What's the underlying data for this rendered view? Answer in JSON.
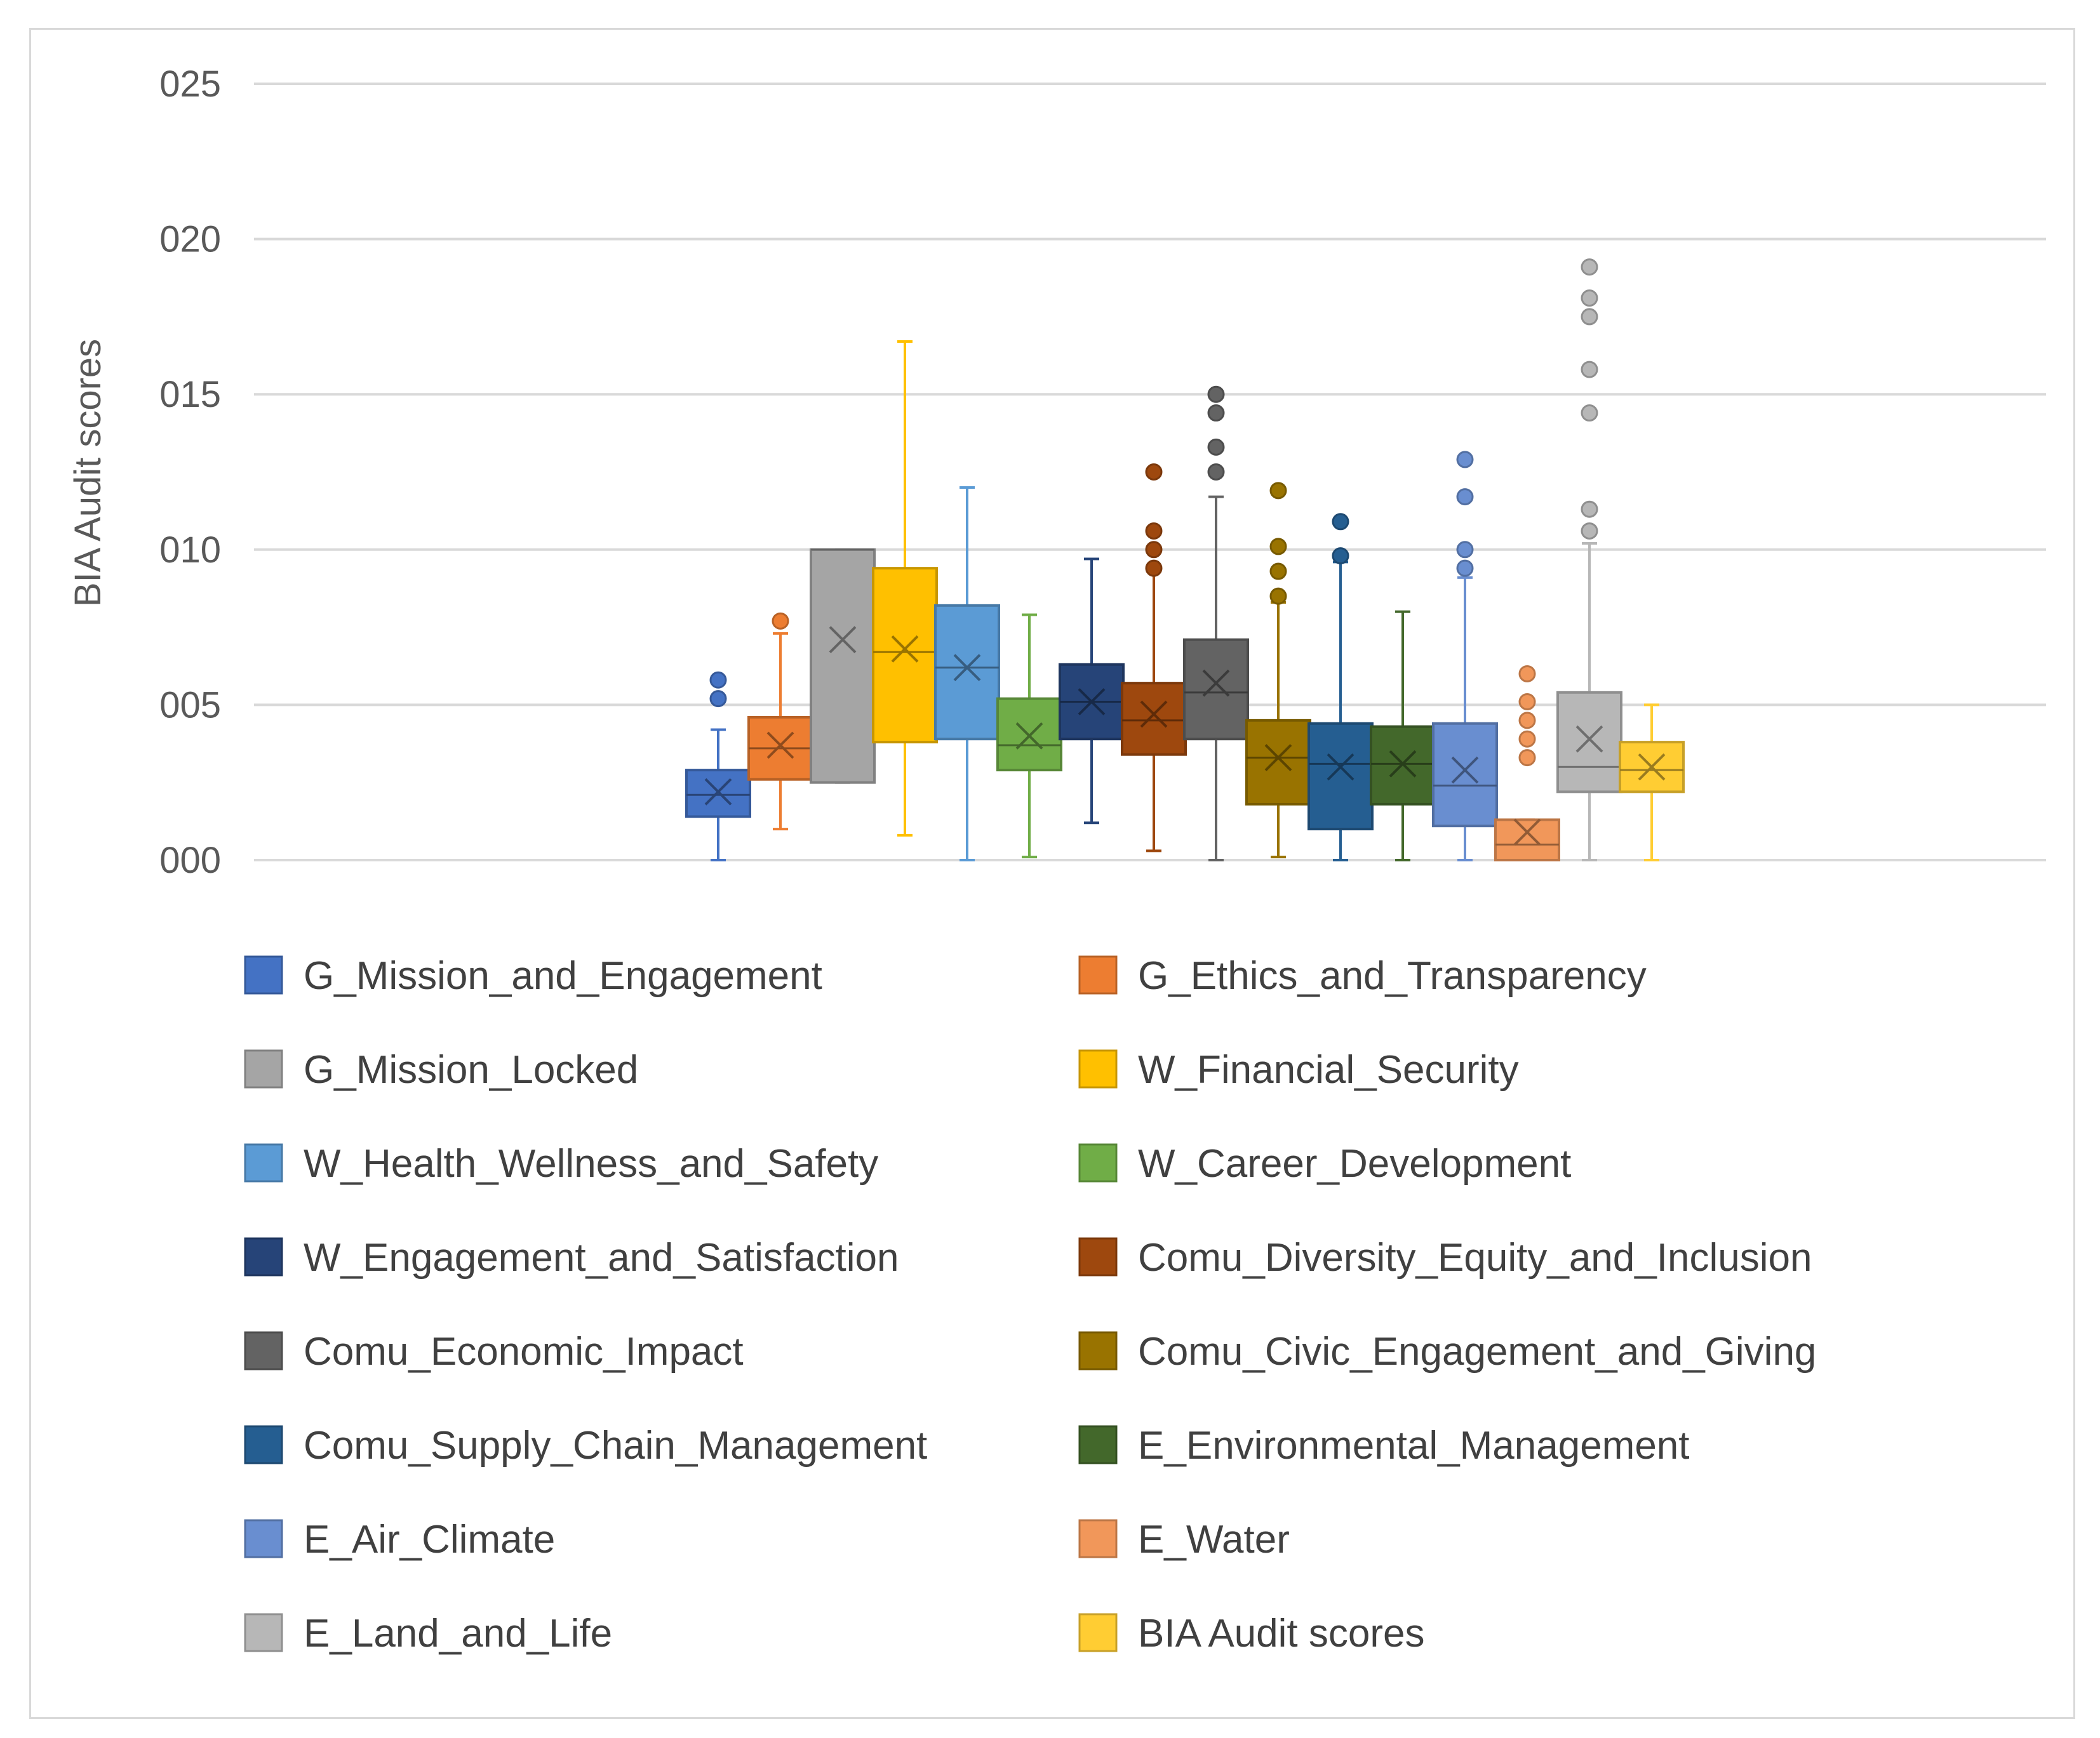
{
  "chart_data": {
    "type": "box",
    "title": "",
    "xlabel": "",
    "ylabel": "BIA Audit scores",
    "ylim": [
      0,
      25
    ],
    "yticks": [
      {
        "value": 0,
        "label": "000"
      },
      {
        "value": 5,
        "label": "005"
      },
      {
        "value": 10,
        "label": "010"
      },
      {
        "value": 15,
        "label": "015"
      },
      {
        "value": 20,
        "label": "020"
      },
      {
        "value": 25,
        "label": "025"
      }
    ],
    "grid": true,
    "legend_position": "bottom",
    "series": [
      {
        "name": "G_Mission_and_Engagement",
        "color": "#4472c4",
        "min": 0,
        "q1": 1.4,
        "median": 2.1,
        "q3": 2.9,
        "max": 4.2,
        "mean": 2.2,
        "outliers": [
          5.2,
          5.8
        ]
      },
      {
        "name": "G_Ethics_and_Transparency",
        "color": "#ed7d31",
        "min": 1.0,
        "q1": 2.6,
        "median": 3.6,
        "q3": 4.6,
        "max": 7.3,
        "mean": 3.7,
        "outliers": [
          7.7
        ]
      },
      {
        "name": "G_Mission_Locked",
        "color": "#a5a5a5",
        "min": 2.5,
        "q1": 2.5,
        "median": 10.0,
        "q3": 10.0,
        "max": 10.0,
        "mean": 7.1,
        "outliers": []
      },
      {
        "name": "W_Financial_Security",
        "color": "#ffc000",
        "min": 0.8,
        "q1": 3.8,
        "median": 6.7,
        "q3": 9.4,
        "max": 16.7,
        "mean": 6.8,
        "outliers": []
      },
      {
        "name": "W_Health_Wellness_and_Safety",
        "color": "#5b9bd5",
        "min": 0,
        "q1": 3.9,
        "median": 6.2,
        "q3": 8.2,
        "max": 12.0,
        "mean": 6.2,
        "outliers": []
      },
      {
        "name": "W_Career_Development",
        "color": "#70ad47",
        "min": 0.1,
        "q1": 2.9,
        "median": 3.7,
        "q3": 5.2,
        "max": 7.9,
        "mean": 4.0,
        "outliers": []
      },
      {
        "name": "W_Engagement_and_Satisfaction",
        "color": "#264478",
        "min": 1.2,
        "q1": 3.9,
        "median": 5.1,
        "q3": 6.3,
        "max": 9.7,
        "mean": 5.1,
        "outliers": []
      },
      {
        "name": "Comu_Diversity_Equity_and_Inclusion",
        "color": "#9e480e",
        "min": 0.3,
        "q1": 3.4,
        "median": 4.5,
        "q3": 5.7,
        "max": 9.3,
        "mean": 4.7,
        "outliers": [
          9.4,
          10.0,
          10.6,
          12.5
        ]
      },
      {
        "name": "Comu_Economic_Impact",
        "color": "#636363",
        "min": 0,
        "q1": 3.9,
        "median": 5.4,
        "q3": 7.1,
        "max": 11.7,
        "mean": 5.7,
        "outliers": [
          12.5,
          13.3,
          14.4,
          15.0
        ]
      },
      {
        "name": "Comu_Civic_Engagement_and_Giving",
        "color": "#997300",
        "min": 0.1,
        "q1": 1.8,
        "median": 3.3,
        "q3": 4.5,
        "max": 8.3,
        "mean": 3.3,
        "outliers": [
          8.5,
          9.3,
          10.1,
          11.9
        ]
      },
      {
        "name": "Comu_Supply_Chain_Management",
        "color": "#255e91",
        "min": 0,
        "q1": 1.0,
        "median": 3.1,
        "q3": 4.4,
        "max": 9.6,
        "mean": 3.0,
        "outliers": [
          9.8,
          10.9
        ]
      },
      {
        "name": "E_Environmental_Management",
        "color": "#43682b",
        "min": 0,
        "q1": 1.8,
        "median": 3.1,
        "q3": 4.3,
        "max": 8.0,
        "mean": 3.1,
        "outliers": []
      },
      {
        "name": "E_Air_Climate",
        "color": "#698ed0",
        "min": 0,
        "q1": 1.1,
        "median": 2.4,
        "q3": 4.4,
        "max": 9.1,
        "mean": 2.9,
        "outliers": [
          9.4,
          10.0,
          11.7,
          12.9
        ]
      },
      {
        "name": "E_Water",
        "color": "#f1975a",
        "min": 0,
        "q1": 0,
        "median": 0.5,
        "q3": 1.3,
        "max": 1.3,
        "mean": 0.9,
        "outliers": [
          3.3,
          3.9,
          4.5,
          5.1,
          6.0
        ]
      },
      {
        "name": "E_Land_and_Life",
        "color": "#b7b7b7",
        "min": 0,
        "q1": 2.2,
        "median": 3.0,
        "q3": 5.4,
        "max": 10.2,
        "mean": 3.9,
        "outliers": [
          10.6,
          11.3,
          14.4,
          15.8,
          17.5,
          18.1,
          19.1
        ]
      },
      {
        "name": "BIA Audit scores",
        "color": "#ffcd33",
        "min": 0,
        "q1": 2.2,
        "median": 2.9,
        "q3": 3.8,
        "max": 5.0,
        "mean": 3.0,
        "outliers": []
      }
    ]
  }
}
